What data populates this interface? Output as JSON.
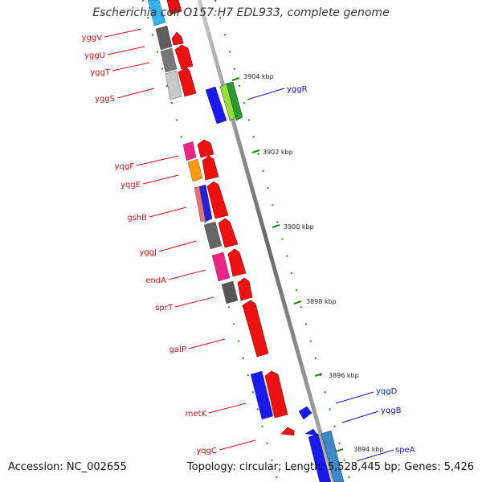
{
  "title": "Escherichia coli O157:H7 EDL933, complete genome",
  "accession": "Accession: NC_002655",
  "topology_info": "Topology: circular; Length: 5,528,445 bp; Genes: 5,426",
  "scale_labels": [
    "3904 kbp",
    "3902 kbp",
    "3900 kbp",
    "3898 kbp",
    "3896 kbp",
    "3894 kbp"
  ],
  "reverse_gene_labels": [
    "yggV",
    "yggU",
    "yggT",
    "yggS",
    "yqgF",
    "yqgE",
    "gshB",
    "yggJ",
    "endA",
    "sprT",
    "galP",
    "metK",
    "yqgC"
  ],
  "forward_gene_labels": [
    "yggR",
    "yqgD",
    "yqgB",
    "speA"
  ],
  "colors": {
    "reverse_label": "#d01010",
    "forward_label": "#1010c8",
    "gene_red": "#ee1111",
    "gene_blue": "#1a1aee",
    "backbone": "#888888",
    "tick_green": "#1a8a1a"
  }
}
